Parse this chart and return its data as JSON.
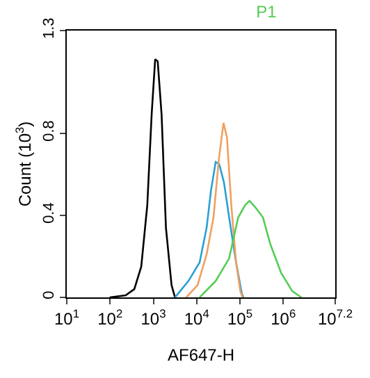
{
  "chart_data": {
    "type": "line",
    "title": "P1",
    "xlabel": "AF647-H",
    "ylabel": "Count (10$^{3}$)",
    "log": "x",
    "xlim": [
      10,
      15848932
    ],
    "ylim": [
      0,
      1.3
    ],
    "xticks": [
      {
        "value": 10,
        "label": "10$^{1}$"
      },
      {
        "value": 100,
        "label": "10$^{2}$"
      },
      {
        "value": 1000,
        "label": "10$^{3}$"
      },
      {
        "value": 10000,
        "label": "10$^{4}$"
      },
      {
        "value": 100000,
        "label": "10$^{5}$"
      },
      {
        "value": 1000000,
        "label": "10$^{6}$"
      },
      {
        "value": 15848932,
        "label": "10$^{7.2}$"
      }
    ],
    "yticks": [
      0,
      0.4,
      0.8,
      1.3
    ],
    "marker": "none",
    "line_style": "solid",
    "series": [
      {
        "color": "#000000",
        "x": [
          98,
          229,
          363,
          525,
          724,
          912,
          1100,
          1260,
          1550,
          1950,
          2630,
          3160
        ],
        "values": [
          0,
          0.01,
          0.04,
          0.15,
          0.45,
          0.89,
          1.16,
          1.15,
          0.89,
          0.34,
          0.06,
          0
        ]
      },
      {
        "color": "#2a9fd6",
        "x": [
          3160,
          6460,
          11700,
          17000,
          21400,
          27500,
          33100,
          42700,
          56200,
          81300,
          110000,
          120000
        ],
        "values": [
          0,
          0.08,
          0.17,
          0.34,
          0.52,
          0.66,
          0.65,
          0.56,
          0.39,
          0.17,
          0.02,
          0
        ]
      },
      {
        "color": "#f0a060",
        "x": [
          5750,
          10500,
          17000,
          24500,
          32400,
          41700,
          50100,
          63100,
          81300,
          102000,
          115000
        ],
        "values": [
          0,
          0.06,
          0.21,
          0.39,
          0.67,
          0.85,
          0.78,
          0.45,
          0.17,
          0.03,
          0
        ]
      },
      {
        "color": "#55cc55",
        "x": [
          11700,
          27500,
          56200,
          91200,
          132000,
          166000,
          224000,
          339000,
          501000,
          891000,
          1620000,
          2630000
        ],
        "values": [
          0,
          0.08,
          0.19,
          0.39,
          0.45,
          0.47,
          0.44,
          0.39,
          0.26,
          0.12,
          0.03,
          0
        ]
      }
    ]
  }
}
